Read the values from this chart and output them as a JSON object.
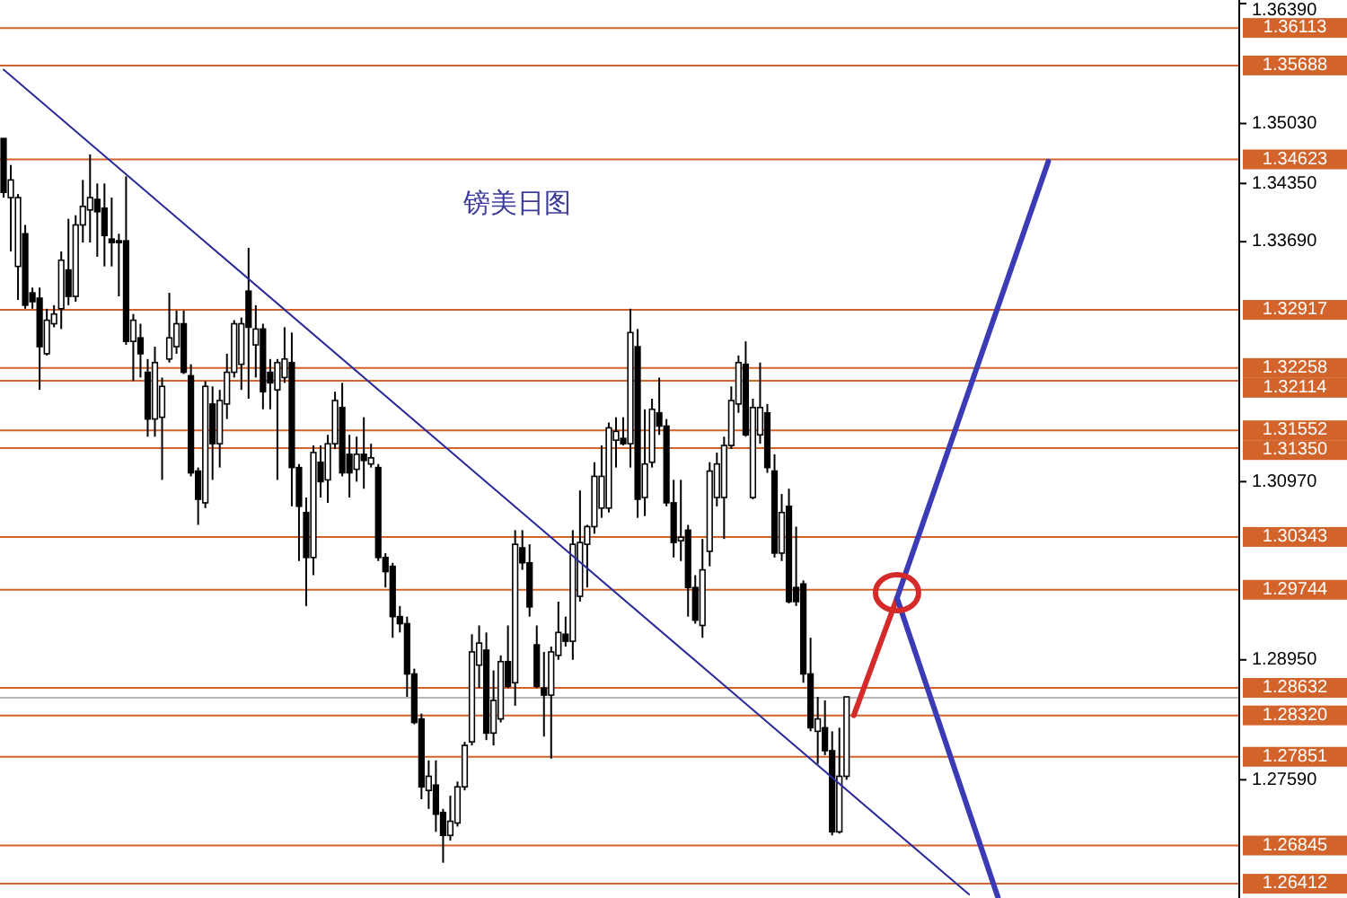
{
  "chart_data": {
    "type": "candlestick",
    "title": "镑美日图",
    "tick_labels": "y",
    "categories": [
      null,
      null,
      null,
      null,
      null,
      null,
      null,
      null,
      null,
      null,
      null,
      null,
      null,
      null,
      null,
      null,
      null,
      null,
      null,
      null,
      null,
      null,
      null,
      null,
      null,
      null,
      null,
      null,
      null,
      null,
      null,
      null,
      null,
      null,
      null,
      null,
      null,
      null,
      null,
      null,
      null,
      null,
      null,
      null,
      null,
      null,
      null,
      null,
      null,
      null,
      null,
      null,
      null,
      null,
      null,
      null,
      null,
      null,
      null,
      null,
      null,
      null,
      null,
      null,
      null,
      null,
      null,
      null,
      null,
      null,
      null,
      null,
      null,
      null,
      null,
      null,
      null,
      null,
      null,
      null,
      null,
      null,
      null,
      null,
      null,
      null,
      null,
      null,
      null,
      null,
      null,
      null,
      null,
      null,
      null,
      null,
      null,
      null,
      null,
      null,
      null,
      null,
      null,
      null,
      null,
      null,
      null,
      null,
      null,
      null,
      null,
      null,
      null,
      null,
      null,
      null,
      null,
      null,
      null,
      null,
      null,
      null,
      null,
      null,
      null,
      null,
      null,
      null,
      null,
      null,
      null,
      null,
      null,
      null,
      null,
      null,
      null,
      null,
      null,
      null,
      null,
      null,
      null,
      null,
      null,
      null,
      null,
      null,
      null,
      null,
      null,
      null,
      null,
      null,
      null,
      null,
      null,
      null,
      null,
      null,
      null,
      null,
      null,
      null,
      null,
      null,
      null,
      null,
      null,
      null,
      null,
      null
    ],
    "ohlc": [
      [
        1.3486,
        1.3486,
        1.3419,
        1.3425
      ],
      [
        1.3419,
        1.3456,
        1.3358,
        1.3439
      ],
      [
        1.3341,
        1.3423,
        1.3303,
        1.3419
      ],
      [
        1.3378,
        1.3388,
        1.3293,
        1.3297
      ],
      [
        1.3311,
        1.3317,
        1.3293,
        1.3301
      ],
      [
        1.3305,
        1.3317,
        1.3201,
        1.325
      ],
      [
        1.3242,
        1.3293,
        1.324,
        1.328
      ],
      [
        1.3276,
        1.3297,
        1.3272,
        1.3287
      ],
      [
        1.3293,
        1.3358,
        1.327,
        1.3348
      ],
      [
        1.3337,
        1.3395,
        1.3297,
        1.3307
      ],
      [
        1.3307,
        1.3399,
        1.3301,
        1.3388
      ],
      [
        1.3388,
        1.3439,
        1.3368,
        1.3409
      ],
      [
        1.3405,
        1.3468,
        1.3368,
        1.3419
      ],
      [
        1.3417,
        1.3435,
        1.3352,
        1.3403
      ],
      [
        1.3407,
        1.3435,
        1.3341,
        1.3376
      ],
      [
        1.3372,
        1.3419,
        1.3341,
        1.3368
      ],
      [
        1.337,
        1.3378,
        1.3307,
        1.3368
      ],
      [
        1.337,
        1.3443,
        1.3252,
        1.3256
      ],
      [
        1.3256,
        1.3287,
        1.3211,
        1.328
      ],
      [
        1.326,
        1.3276,
        1.3215,
        1.3242
      ],
      [
        1.3221,
        1.3236,
        1.3148,
        1.3168
      ],
      [
        1.3168,
        1.325,
        1.3148,
        1.3232
      ],
      [
        1.317,
        1.3215,
        1.3099,
        1.3205
      ],
      [
        1.3236,
        1.3311,
        1.3232,
        1.326
      ],
      [
        1.325,
        1.3291,
        1.3242,
        1.3276
      ],
      [
        1.3276,
        1.3291,
        1.3219,
        1.3221
      ],
      [
        1.3217,
        1.323,
        1.3103,
        1.3107
      ],
      [
        1.3109,
        1.3113,
        1.3048,
        1.3077
      ],
      [
        1.3073,
        1.3211,
        1.3067,
        1.3205
      ],
      [
        1.3185,
        1.3205,
        1.3099,
        1.314
      ],
      [
        1.314,
        1.3201,
        1.3113,
        1.3189
      ],
      [
        1.3185,
        1.3242,
        1.3168,
        1.3221
      ],
      [
        1.3221,
        1.328,
        1.3215,
        1.3276
      ],
      [
        1.323,
        1.3283,
        1.3201,
        1.3276
      ],
      [
        1.3313,
        1.3362,
        1.3191,
        1.3272
      ],
      [
        1.3252,
        1.3297,
        1.3215,
        1.327
      ],
      [
        1.327,
        1.3276,
        1.3179,
        1.3199
      ],
      [
        1.3221,
        1.3236,
        1.3179,
        1.3209
      ],
      [
        1.3201,
        1.3236,
        1.3099,
        1.3232
      ],
      [
        1.3215,
        1.3272,
        1.3209,
        1.3236
      ],
      [
        1.3232,
        1.3266,
        1.3069,
        1.3113
      ],
      [
        1.3113,
        1.3117,
        1.3007,
        1.3069
      ],
      [
        1.3062,
        1.3079,
        1.2956,
        1.3011
      ],
      [
        1.3011,
        1.3138,
        1.2991,
        1.313
      ],
      [
        1.3119,
        1.3138,
        1.3079,
        1.3097
      ],
      [
        1.3099,
        1.315,
        1.3073,
        1.314
      ],
      [
        1.314,
        1.3199,
        1.3134,
        1.3189
      ],
      [
        1.3181,
        1.3209,
        1.3103,
        1.3107
      ],
      [
        1.3128,
        1.315,
        1.3079,
        1.3107
      ],
      [
        1.3111,
        1.3148,
        1.3097,
        1.3128
      ],
      [
        1.3128,
        1.317,
        1.3089,
        1.3121
      ],
      [
        1.3117,
        1.314,
        1.3113,
        1.3124
      ],
      [
        1.3113,
        1.3117,
        1.3007,
        1.3011
      ],
      [
        1.3011,
        1.3016,
        1.2977,
        1.2995
      ],
      [
        1.3001,
        1.3005,
        1.292,
        1.2944
      ],
      [
        1.2944,
        1.2956,
        1.2926,
        1.2936
      ],
      [
        1.2936,
        1.2944,
        1.2853,
        1.2879
      ],
      [
        1.2879,
        1.2885,
        1.2822,
        1.2824
      ],
      [
        1.2828,
        1.2834,
        1.2737,
        1.2751
      ],
      [
        1.2747,
        1.2781,
        1.2726,
        1.2763
      ],
      [
        1.2753,
        1.2781,
        1.27,
        1.272
      ],
      [
        1.2722,
        1.2726,
        1.2665,
        1.2696
      ],
      [
        1.2696,
        1.2741,
        1.269,
        1.2712
      ],
      [
        1.271,
        1.2757,
        1.2706,
        1.2751
      ],
      [
        1.2751,
        1.2802,
        1.2747,
        1.2798
      ],
      [
        1.2802,
        1.2924,
        1.2798,
        1.2904
      ],
      [
        1.2889,
        1.2934,
        1.2863,
        1.2914
      ],
      [
        1.2906,
        1.2926,
        1.2804,
        1.2812
      ],
      [
        1.2812,
        1.2883,
        1.2798,
        1.2849
      ],
      [
        1.2828,
        1.29,
        1.2824,
        1.2893
      ],
      [
        1.2893,
        1.2934,
        1.2863,
        1.2865
      ],
      [
        1.2869,
        1.3042,
        1.2843,
        1.3026
      ],
      [
        1.3022,
        1.3042,
        1.2997,
        1.3005
      ],
      [
        1.3005,
        1.3026,
        1.2944,
        1.2955
      ],
      [
        1.2912,
        1.2934,
        1.2863,
        1.2865
      ],
      [
        1.2863,
        1.2904,
        1.2808,
        1.2855
      ],
      [
        1.2855,
        1.291,
        1.2783,
        1.2904
      ],
      [
        1.29,
        1.2961,
        1.2895,
        1.2926
      ],
      [
        1.2924,
        1.2944,
        1.291,
        1.2916
      ],
      [
        1.2916,
        1.3042,
        1.2895,
        1.3026
      ],
      [
        1.2967,
        1.3087,
        1.2961,
        1.3028
      ],
      [
        1.3026,
        1.3048,
        1.2977,
        1.3046
      ],
      [
        1.3046,
        1.3119,
        1.3038,
        1.3103
      ],
      [
        1.3067,
        1.3138,
        1.3056,
        1.3103
      ],
      [
        1.3067,
        1.3164,
        1.3062,
        1.3158
      ],
      [
        1.3144,
        1.317,
        1.3113,
        1.3154
      ],
      [
        1.3146,
        1.317,
        1.3138,
        1.314
      ],
      [
        1.314,
        1.3293,
        1.3113,
        1.3266
      ],
      [
        1.325,
        1.327,
        1.3056,
        1.3077
      ],
      [
        1.3079,
        1.3179,
        1.3058,
        1.3117
      ],
      [
        1.3119,
        1.3191,
        1.3113,
        1.3179
      ],
      [
        1.3175,
        1.3215,
        1.315,
        1.316
      ],
      [
        1.316,
        1.3168,
        1.3069,
        1.3073
      ],
      [
        1.3073,
        1.3099,
        1.3011,
        1.3028
      ],
      [
        1.303,
        1.3099,
        1.3007,
        1.3034
      ],
      [
        1.3042,
        1.3048,
        1.2944,
        1.2977
      ],
      [
        1.2977,
        1.2991,
        1.2936,
        1.294
      ],
      [
        1.2934,
        1.3032,
        1.292,
        1.2997
      ],
      [
        1.3018,
        1.3119,
        1.3001,
        1.3109
      ],
      [
        1.3079,
        1.313,
        1.3069,
        1.3117
      ],
      [
        1.3079,
        1.3148,
        1.3032,
        1.3138
      ],
      [
        1.3138,
        1.3205,
        1.3134,
        1.3189
      ],
      [
        1.3185,
        1.324,
        1.3175,
        1.3232
      ],
      [
        1.323,
        1.3256,
        1.3148,
        1.315
      ],
      [
        1.3079,
        1.3191,
        1.3077,
        1.3181
      ],
      [
        1.315,
        1.3232,
        1.314,
        1.3181
      ],
      [
        1.3175,
        1.3185,
        1.3107,
        1.3113
      ],
      [
        1.3109,
        1.3128,
        1.3011,
        1.3016
      ],
      [
        1.3016,
        1.3083,
        1.3007,
        1.3062
      ],
      [
        1.3069,
        1.3089,
        1.2959,
        1.2961
      ],
      [
        1.2977,
        1.3046,
        1.2956,
        1.2961
      ],
      [
        1.2981,
        1.2985,
        1.2869,
        1.2879
      ],
      [
        1.2879,
        1.292,
        1.2814,
        1.2818
      ],
      [
        1.2814,
        1.2853,
        1.2777,
        1.2828
      ],
      [
        1.2818,
        1.2849,
        1.2787,
        1.2792
      ],
      [
        1.2792,
        1.2814,
        1.2696,
        1.27
      ],
      [
        1.27,
        1.2818,
        1.2698,
        1.2763
      ],
      [
        1.2763,
        1.2853,
        1.2759,
        1.2853
      ],
      null,
      null,
      null,
      null,
      null,
      null,
      null,
      null,
      null,
      null,
      null,
      null,
      null,
      null,
      null,
      null,
      null,
      null,
      null,
      null,
      null,
      null,
      null,
      null,
      null,
      null,
      null,
      null,
      null,
      null,
      null,
      null,
      null,
      null,
      null,
      null,
      null,
      null,
      null,
      null,
      null,
      null,
      null,
      null,
      null,
      null,
      null,
      null,
      null,
      null,
      null,
      null,
      null,
      null
    ],
    "series": [
      {
        "type": "line",
        "color": "#2b2b9c",
        "values": [
          1.3564,
          null,
          null,
          null,
          null,
          null,
          null,
          null,
          null,
          null,
          null,
          null,
          null,
          null,
          null,
          null,
          null,
          null,
          null,
          null,
          null,
          null,
          null,
          null,
          null,
          null,
          null,
          null,
          null,
          null,
          null,
          null,
          null,
          null,
          null,
          null,
          null,
          null,
          null,
          null,
          null,
          null,
          null,
          null,
          null,
          null,
          null,
          null,
          null,
          null,
          null,
          null,
          null,
          null,
          null,
          null,
          null,
          null,
          null,
          null,
          null,
          null,
          null,
          null,
          null,
          null,
          null,
          null,
          null,
          null,
          null,
          null,
          null,
          null,
          null,
          null,
          null,
          null,
          null,
          null,
          null,
          null,
          null,
          null,
          null,
          null,
          null,
          null,
          null,
          null,
          null,
          null,
          null,
          null,
          null,
          null,
          null,
          null,
          null,
          null,
          null,
          null,
          null,
          null,
          null,
          null,
          null,
          null,
          null,
          null,
          null,
          null,
          null,
          null,
          null,
          null,
          null,
          null,
          null,
          null,
          null,
          null,
          null,
          null,
          null,
          null,
          null,
          null,
          null,
          null,
          null,
          null,
          null,
          null,
          1.2629,
          null,
          null,
          null,
          null,
          null,
          null,
          null,
          null,
          null,
          null,
          null,
          null,
          null,
          null,
          null,
          null,
          null,
          null,
          null,
          null,
          null,
          null,
          null,
          null,
          null,
          null,
          null,
          null,
          null,
          null,
          null,
          null,
          null,
          null,
          null,
          null,
          null
        ]
      },
      {
        "type": "line",
        "color": "#d42a2a",
        "values": [
          null,
          null,
          null,
          null,
          null,
          null,
          null,
          null,
          null,
          null,
          null,
          null,
          null,
          null,
          null,
          null,
          null,
          null,
          null,
          null,
          null,
          null,
          null,
          null,
          null,
          null,
          null,
          null,
          null,
          null,
          null,
          null,
          null,
          null,
          null,
          null,
          null,
          null,
          null,
          null,
          null,
          null,
          null,
          null,
          null,
          null,
          null,
          null,
          null,
          null,
          null,
          null,
          null,
          null,
          null,
          null,
          null,
          null,
          null,
          null,
          null,
          null,
          null,
          null,
          null,
          null,
          null,
          null,
          null,
          null,
          null,
          null,
          null,
          null,
          null,
          null,
          null,
          null,
          null,
          null,
          null,
          null,
          null,
          null,
          null,
          null,
          null,
          null,
          null,
          null,
          null,
          null,
          null,
          null,
          null,
          null,
          null,
          null,
          null,
          null,
          null,
          null,
          null,
          null,
          null,
          null,
          null,
          null,
          null,
          null,
          null,
          null,
          null,
          null,
          null,
          null,
          null,
          null,
          1.2832,
          null,
          null,
          null,
          null,
          null,
          1.2965,
          null,
          null,
          null,
          null,
          null,
          null,
          null,
          null,
          null,
          null,
          null,
          null,
          null,
          null,
          null,
          null,
          null,
          null,
          null,
          null,
          null,
          null,
          null,
          null,
          null,
          null,
          null,
          null,
          null,
          null,
          null,
          null,
          null,
          null,
          null,
          null,
          null,
          null,
          null,
          null,
          null,
          null,
          null,
          null,
          null,
          null,
          null
        ]
      },
      {
        "type": "line",
        "color": "#3b3bb5",
        "values": [
          null,
          null,
          null,
          null,
          null,
          null,
          null,
          null,
          null,
          null,
          null,
          null,
          null,
          null,
          null,
          null,
          null,
          null,
          null,
          null,
          null,
          null,
          null,
          null,
          null,
          null,
          null,
          null,
          null,
          null,
          null,
          null,
          null,
          null,
          null,
          null,
          null,
          null,
          null,
          null,
          null,
          null,
          null,
          null,
          null,
          null,
          null,
          null,
          null,
          null,
          null,
          null,
          null,
          null,
          null,
          null,
          null,
          null,
          null,
          null,
          null,
          null,
          null,
          null,
          null,
          null,
          null,
          null,
          null,
          null,
          null,
          null,
          null,
          null,
          null,
          null,
          null,
          null,
          null,
          null,
          null,
          null,
          null,
          null,
          null,
          null,
          null,
          null,
          null,
          null,
          null,
          null,
          null,
          null,
          null,
          null,
          null,
          null,
          null,
          null,
          null,
          null,
          null,
          null,
          null,
          null,
          null,
          null,
          null,
          null,
          null,
          null,
          null,
          null,
          null,
          null,
          null,
          null,
          null,
          null,
          null,
          null,
          null,
          null,
          1.2965,
          null,
          null,
          null,
          null,
          null,
          null,
          null,
          null,
          null,
          null,
          null,
          null,
          null,
          null,
          null,
          null,
          null,
          null,
          null,
          null,
          1.346,
          null,
          null,
          null,
          null,
          null,
          null,
          null,
          null,
          null,
          null,
          null,
          null,
          null,
          null,
          null,
          null,
          null,
          null,
          null,
          null,
          null,
          null,
          null,
          null,
          null,
          null
        ]
      },
      {
        "type": "line",
        "color": "#3b3bb5",
        "values": [
          null,
          null,
          null,
          null,
          null,
          null,
          null,
          null,
          null,
          null,
          null,
          null,
          null,
          null,
          null,
          null,
          null,
          null,
          null,
          null,
          null,
          null,
          null,
          null,
          null,
          null,
          null,
          null,
          null,
          null,
          null,
          null,
          null,
          null,
          null,
          null,
          null,
          null,
          null,
          null,
          null,
          null,
          null,
          null,
          null,
          null,
          null,
          null,
          null,
          null,
          null,
          null,
          null,
          null,
          null,
          null,
          null,
          null,
          null,
          null,
          null,
          null,
          null,
          null,
          null,
          null,
          null,
          null,
          null,
          null,
          null,
          null,
          null,
          null,
          null,
          null,
          null,
          null,
          null,
          null,
          null,
          null,
          null,
          null,
          null,
          null,
          null,
          null,
          null,
          null,
          null,
          null,
          null,
          null,
          null,
          null,
          null,
          null,
          null,
          null,
          null,
          null,
          null,
          null,
          null,
          null,
          null,
          null,
          null,
          null,
          null,
          null,
          null,
          null,
          null,
          null,
          null,
          null,
          null,
          null,
          null,
          null,
          null,
          null,
          1.2965,
          null,
          null,
          null,
          null,
          null,
          null,
          null,
          null,
          null,
          null,
          null,
          null,
          null,
          1.2626,
          null,
          null,
          null,
          null,
          null,
          null,
          null,
          null,
          null,
          null,
          null,
          null,
          null,
          null,
          null,
          null,
          null,
          null,
          null,
          null,
          null,
          null,
          null,
          null,
          null,
          null,
          null,
          null,
          null,
          null,
          null,
          null,
          null
        ]
      }
    ],
    "ylim": [
      1.2625,
      1.3643
    ],
    "yticks": [
      {
        "value": 1.3639,
        "label": "1.36390"
      },
      {
        "value": 1.3503,
        "label": "1.35030"
      },
      {
        "value": 1.3435,
        "label": "1.34350"
      },
      {
        "value": 1.3369,
        "label": "1.33690"
      },
      {
        "value": 1.3097,
        "label": "1.30970"
      },
      {
        "value": 1.2895,
        "label": "1.28950"
      },
      {
        "value": 1.2759,
        "label": "1.27590"
      }
    ],
    "ref_lines": [
      {
        "axis": "y",
        "value": 1.36113,
        "label": "1.36113",
        "color": "#d2632b"
      },
      {
        "axis": "y",
        "value": 1.35688,
        "label": "1.35688",
        "color": "#d2632b"
      },
      {
        "axis": "y",
        "value": 1.34623,
        "label": "1.34623",
        "color": "#d2632b"
      },
      {
        "axis": "y",
        "value": 1.32917,
        "label": "1.32917",
        "color": "#d2632b"
      },
      {
        "axis": "y",
        "value": 1.32258,
        "label": "1.32258",
        "color": "#d2632b"
      },
      {
        "axis": "y",
        "value": 1.32114,
        "label": "1.32114",
        "color": "#d2632b"
      },
      {
        "axis": "y",
        "value": 1.31552,
        "label": "1.31552",
        "color": "#d2632b"
      },
      {
        "axis": "y",
        "value": 1.3135,
        "label": "1.31350",
        "color": "#d2632b"
      },
      {
        "axis": "y",
        "value": 1.30343,
        "label": "1.30343",
        "color": "#d2632b"
      },
      {
        "axis": "y",
        "value": 1.29744,
        "label": "1.29744",
        "color": "#d2632b"
      },
      {
        "axis": "y",
        "value": 1.28632,
        "label": "1.28632",
        "color": "#d2632b"
      },
      {
        "axis": "y",
        "value": 1.2852,
        "color": "#b8b8b8"
      },
      {
        "axis": "y",
        "value": 1.2832,
        "label": "1.28320",
        "color": "#d2632b"
      },
      {
        "axis": "y",
        "value": 1.27851,
        "label": "1.27851",
        "color": "#d2632b"
      },
      {
        "axis": "y",
        "value": 1.26845,
        "label": "1.26845",
        "color": "#d2632b"
      },
      {
        "axis": "y",
        "value": 1.26412,
        "label": "1.26412",
        "color": "#d2632b"
      }
    ]
  }
}
